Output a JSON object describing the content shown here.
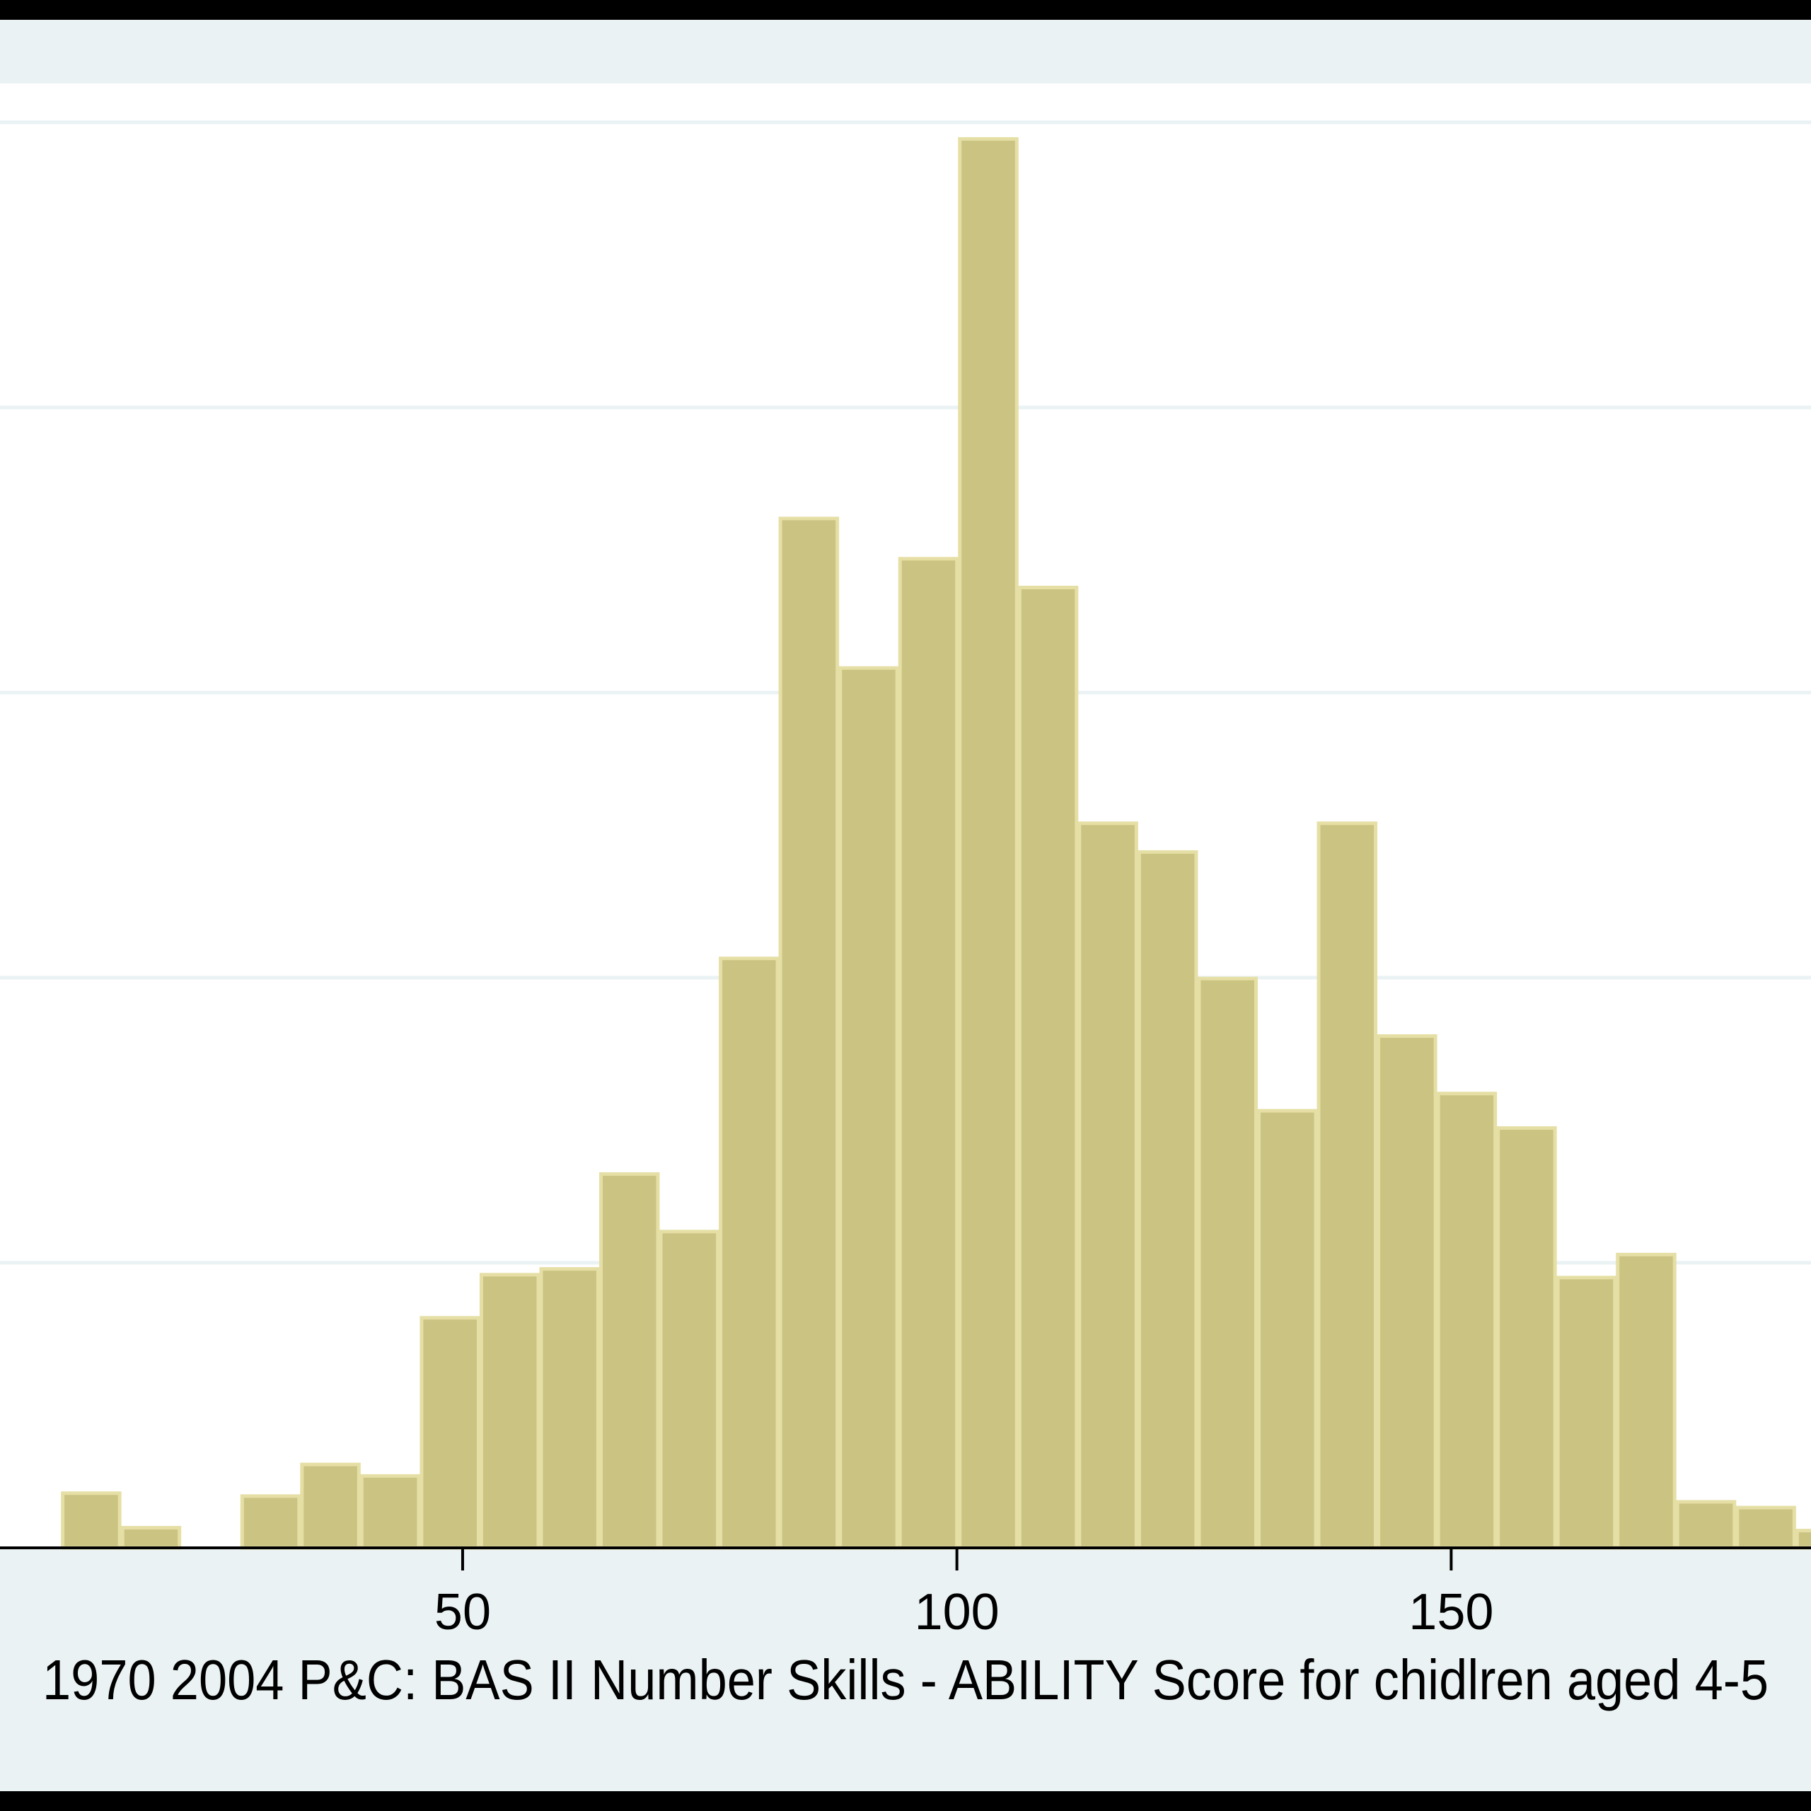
{
  "chart_data": {
    "type": "bar",
    "title": "",
    "xlabel": "1970 2004 P&C: BAS II Number Skills - ABILITY Score for chidlren aged 4-5",
    "ylabel": "",
    "x_ticks": [
      50,
      100,
      150
    ],
    "xlim": [
      3.2,
      186.4
    ],
    "ylim": [
      0,
      0.0248
    ],
    "grid": true,
    "bin_width": 6.05,
    "bins": [
      {
        "start": 9.4,
        "value": 0.00095
      },
      {
        "start": 15.45,
        "value": 0.00035
      },
      {
        "start": 21.5,
        "value": 0.0
      },
      {
        "start": 27.55,
        "value": 0.0009
      },
      {
        "start": 33.6,
        "value": 0.00145
      },
      {
        "start": 39.65,
        "value": 0.00125
      },
      {
        "start": 45.7,
        "value": 0.004
      },
      {
        "start": 51.75,
        "value": 0.00475
      },
      {
        "start": 57.8,
        "value": 0.00485
      },
      {
        "start": 63.85,
        "value": 0.0065
      },
      {
        "start": 69.9,
        "value": 0.0055
      },
      {
        "start": 75.95,
        "value": 0.01025
      },
      {
        "start": 82.0,
        "value": 0.0179
      },
      {
        "start": 88.05,
        "value": 0.0153
      },
      {
        "start": 94.1,
        "value": 0.0172
      },
      {
        "start": 100.15,
        "value": 0.0245
      },
      {
        "start": 106.2,
        "value": 0.0167
      },
      {
        "start": 112.25,
        "value": 0.0126
      },
      {
        "start": 118.3,
        "value": 0.0121
      },
      {
        "start": 124.35,
        "value": 0.0099
      },
      {
        "start": 130.4,
        "value": 0.0076
      },
      {
        "start": 136.45,
        "value": 0.0126
      },
      {
        "start": 142.5,
        "value": 0.0089
      },
      {
        "start": 148.55,
        "value": 0.0079
      },
      {
        "start": 154.6,
        "value": 0.0073
      },
      {
        "start": 160.65,
        "value": 0.0047
      },
      {
        "start": 166.7,
        "value": 0.0051
      },
      {
        "start": 172.75,
        "value": 0.0008
      },
      {
        "start": 178.8,
        "value": 0.0007
      },
      {
        "start": 184.85,
        "value": 0.0003
      }
    ],
    "colors": {
      "bar_fill": "#cbc382",
      "bar_edge": "#e6dfa5",
      "plot_bg": "#ffffff",
      "frame_bg": "#eaf2f3",
      "gridline": "#eaf2f3",
      "axis": "#000000"
    }
  }
}
